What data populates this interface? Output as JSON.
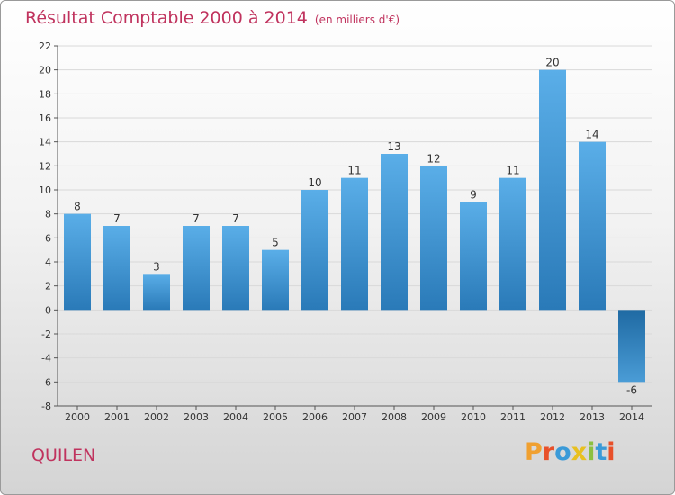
{
  "chart_data": {
    "type": "bar",
    "title": "Résultat Comptable 2000 à 2014",
    "subtitle": "(en milliers d'€)",
    "xlabel": "",
    "ylabel": "",
    "categories": [
      "2000",
      "2001",
      "2002",
      "2003",
      "2004",
      "2005",
      "2006",
      "2007",
      "2008",
      "2009",
      "2010",
      "2011",
      "2012",
      "2013",
      "2014"
    ],
    "values": [
      8,
      7,
      3,
      7,
      7,
      5,
      10,
      11,
      13,
      12,
      9,
      11,
      20,
      14,
      -6
    ],
    "ylim": [
      -8,
      22
    ],
    "yticks": [
      -8,
      -6,
      -4,
      -2,
      0,
      2,
      4,
      6,
      8,
      10,
      12,
      14,
      16,
      18,
      20,
      22
    ],
    "grid": true,
    "colors": {
      "bar_light": "#5aaee8",
      "bar_dark": "#2a7ab8",
      "neg_light": "#4a9cd6",
      "neg_dark": "#1f6aa3",
      "grid": "#d9d9d9"
    }
  },
  "labels": {
    "commune": "QUILEN",
    "brand": "Proxiti",
    "brand_colors": [
      "#f0a030",
      "#e8502a",
      "#3a9ad8",
      "#e8c020",
      "#8cc040",
      "#3a9ad8",
      "#e8502a"
    ]
  }
}
